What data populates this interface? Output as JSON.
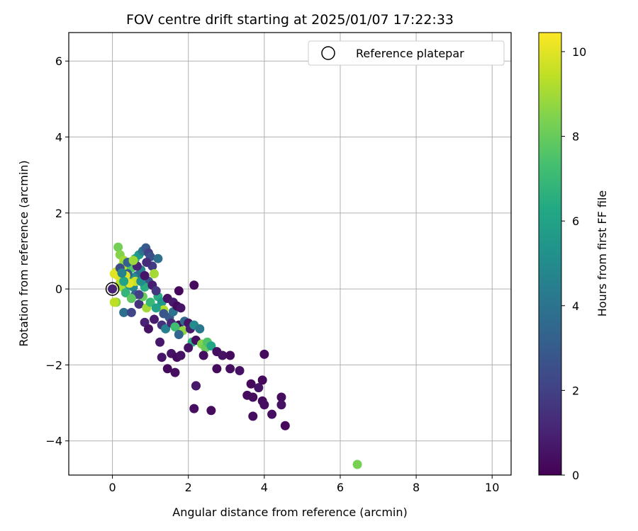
{
  "chart_data": {
    "type": "scatter",
    "title": "FOV centre drift starting at 2025/01/07 17:22:33",
    "xlabel": "Angular distance from reference (arcmin)",
    "ylabel": "Rotation from reference (arcmin)",
    "xlim": [
      -1.15,
      10.5
    ],
    "ylim": [
      -4.9,
      6.75
    ],
    "x_ticks": [
      0,
      2,
      4,
      6,
      8,
      10
    ],
    "y_ticks": [
      -4,
      -2,
      0,
      2,
      4,
      6
    ],
    "grid": true,
    "colormap": "viridis",
    "colorbar": {
      "label": "Hours from first FF file",
      "min": 0,
      "max": 10.45,
      "ticks": [
        0,
        2,
        4,
        6,
        8,
        10
      ]
    },
    "legend": {
      "placement": "top-right",
      "entries": [
        "Reference platepar"
      ]
    },
    "reference_point": {
      "x": 0,
      "y": 0
    },
    "points": [
      [
        0.15,
        1.1,
        8.2
      ],
      [
        0.2,
        0.9,
        8.5
      ],
      [
        0.3,
        0.75,
        9.0
      ],
      [
        0.25,
        0.6,
        8.8
      ],
      [
        0.1,
        0.45,
        9.5
      ],
      [
        0.35,
        0.5,
        9.2
      ],
      [
        0.45,
        0.7,
        8.0
      ],
      [
        0.5,
        0.55,
        7.5
      ],
      [
        0.6,
        0.8,
        6.5
      ],
      [
        0.7,
        0.9,
        5.5
      ],
      [
        0.8,
        1.0,
        4.0
      ],
      [
        0.88,
        1.08,
        3.0
      ],
      [
        0.95,
        0.95,
        2.0
      ],
      [
        1.0,
        0.85,
        2.5
      ],
      [
        1.05,
        0.6,
        1.8
      ],
      [
        0.75,
        0.5,
        4.5
      ],
      [
        0.65,
        0.35,
        3.5
      ],
      [
        0.55,
        0.3,
        5.0
      ],
      [
        0.4,
        0.4,
        2.8
      ],
      [
        0.3,
        0.25,
        8.5
      ],
      [
        0.2,
        0.15,
        9.3
      ],
      [
        0.15,
        0.35,
        9.8
      ],
      [
        0.05,
        0.4,
        10.0
      ],
      [
        0.25,
        0.05,
        9.0
      ],
      [
        0.1,
        -0.35,
        8.6
      ],
      [
        0.05,
        -0.35,
        9.4
      ],
      [
        0.35,
        -0.1,
        6.8
      ],
      [
        0.45,
        0.1,
        5.8
      ],
      [
        0.55,
        0.05,
        4.8
      ],
      [
        0.6,
        -0.15,
        3.2
      ],
      [
        0.3,
        -0.62,
        3.8
      ],
      [
        0.5,
        -0.62,
        2.2
      ],
      [
        0.7,
        -0.4,
        1.5
      ],
      [
        0.8,
        -0.2,
        8.0
      ],
      [
        0.9,
        -0.5,
        9.0
      ],
      [
        1.0,
        -0.35,
        7.0
      ],
      [
        0.85,
        -0.88,
        1.0
      ],
      [
        0.95,
        -1.05,
        0.5
      ],
      [
        1.1,
        -0.8,
        0.8
      ],
      [
        1.2,
        -0.2,
        6.5
      ],
      [
        1.3,
        -0.35,
        5.5
      ],
      [
        1.35,
        -0.55,
        9.2
      ],
      [
        1.3,
        -0.95,
        1.5
      ],
      [
        1.4,
        -1.05,
        4.5
      ],
      [
        1.5,
        -0.75,
        3.0
      ],
      [
        1.45,
        -0.25,
        0.5
      ],
      [
        1.6,
        -0.35,
        0.8
      ],
      [
        1.6,
        -0.6,
        4.0
      ],
      [
        1.7,
        -0.45,
        0.3
      ],
      [
        1.8,
        -0.5,
        0.6
      ],
      [
        1.75,
        -0.05,
        0.2
      ],
      [
        1.75,
        -0.95,
        0.4
      ],
      [
        1.9,
        -0.85,
        3.5
      ],
      [
        1.85,
        -1.1,
        8.7
      ],
      [
        2.0,
        -0.9,
        0.5
      ],
      [
        2.05,
        -1.05,
        0.8
      ],
      [
        2.15,
        -0.95,
        5.0
      ],
      [
        2.1,
        -1.4,
        6.5
      ],
      [
        2.2,
        -1.35,
        0.4
      ],
      [
        2.3,
        -1.05,
        4.2
      ],
      [
        2.35,
        -1.45,
        8.5
      ],
      [
        2.45,
        -1.55,
        8.0
      ],
      [
        2.5,
        -1.4,
        7.5
      ],
      [
        2.4,
        -1.75,
        0.4
      ],
      [
        2.6,
        -1.5,
        6.2
      ],
      [
        2.15,
        0.1,
        0.3
      ],
      [
        1.3,
        -1.8,
        0.6
      ],
      [
        1.45,
        -2.1,
        0.3
      ],
      [
        1.55,
        -1.7,
        0.5
      ],
      [
        1.65,
        -2.2,
        0.4
      ],
      [
        1.7,
        -1.8,
        0.3
      ],
      [
        1.8,
        -1.75,
        0.5
      ],
      [
        2.0,
        -1.55,
        0.5
      ],
      [
        2.2,
        -2.55,
        0.2
      ],
      [
        2.2,
        -2.55,
        0.7
      ],
      [
        2.15,
        -3.15,
        0.4
      ],
      [
        2.6,
        -3.2,
        0.3
      ],
      [
        2.75,
        -1.65,
        0.4
      ],
      [
        2.75,
        -2.1,
        0.3
      ],
      [
        2.9,
        -1.75,
        0.5
      ],
      [
        3.1,
        -1.75,
        0.3
      ],
      [
        3.1,
        -2.1,
        0.4
      ],
      [
        3.35,
        -2.15,
        0.5
      ],
      [
        3.55,
        -2.8,
        0.3
      ],
      [
        3.65,
        -2.5,
        0.2
      ],
      [
        3.7,
        -3.35,
        0.4
      ],
      [
        3.7,
        -2.85,
        0.3
      ],
      [
        3.85,
        -2.6,
        0.5
      ],
      [
        3.95,
        -2.4,
        0.2
      ],
      [
        3.95,
        -2.95,
        0.3
      ],
      [
        4.0,
        -3.05,
        0.4
      ],
      [
        4.0,
        -1.72,
        0.3
      ],
      [
        4.2,
        -3.3,
        0.4
      ],
      [
        4.45,
        -2.85,
        0.3
      ],
      [
        4.45,
        -3.05,
        0.5
      ],
      [
        4.55,
        -3.6,
        0.2
      ],
      [
        1.2,
        0.8,
        3.8
      ],
      [
        1.1,
        0.4,
        9.0
      ],
      [
        0.95,
        0.2,
        2.6
      ],
      [
        0.85,
        0.05,
        6.5
      ],
      [
        0.7,
        -0.15,
        2.0
      ],
      [
        0.6,
        0.2,
        9.6
      ],
      [
        0.4,
        0.7,
        3.2
      ],
      [
        0.2,
        0.55,
        2.4
      ],
      [
        0.35,
        0.35,
        9.9
      ],
      [
        0.5,
        -0.25,
        7.8
      ],
      [
        0.75,
        0.2,
        5.2
      ],
      [
        0.9,
        0.7,
        1.3
      ],
      [
        1.05,
        0.1,
        0.9
      ],
      [
        1.15,
        -0.5,
        6.0
      ],
      [
        1.35,
        -0.65,
        2.8
      ],
      [
        1.55,
        -0.9,
        1.2
      ],
      [
        1.65,
        -1.0,
        7.2
      ],
      [
        1.75,
        -1.2,
        3.4
      ],
      [
        1.15,
        -0.05,
        1.7
      ],
      [
        1.25,
        -1.4,
        0.7
      ],
      [
        0.65,
        0.6,
        1.0
      ],
      [
        0.85,
        0.35,
        0.6
      ],
      [
        0.45,
        0.15,
        10.0
      ],
      [
        0.55,
        0.75,
        8.9
      ],
      [
        0.3,
        0.2,
        6.0
      ],
      [
        0.25,
        0.42,
        4.6
      ],
      [
        0.0,
        0.0,
        9.5
      ],
      [
        0.0,
        0.0,
        1.0
      ],
      [
        6.45,
        -4.62,
        8.3
      ]
    ]
  }
}
